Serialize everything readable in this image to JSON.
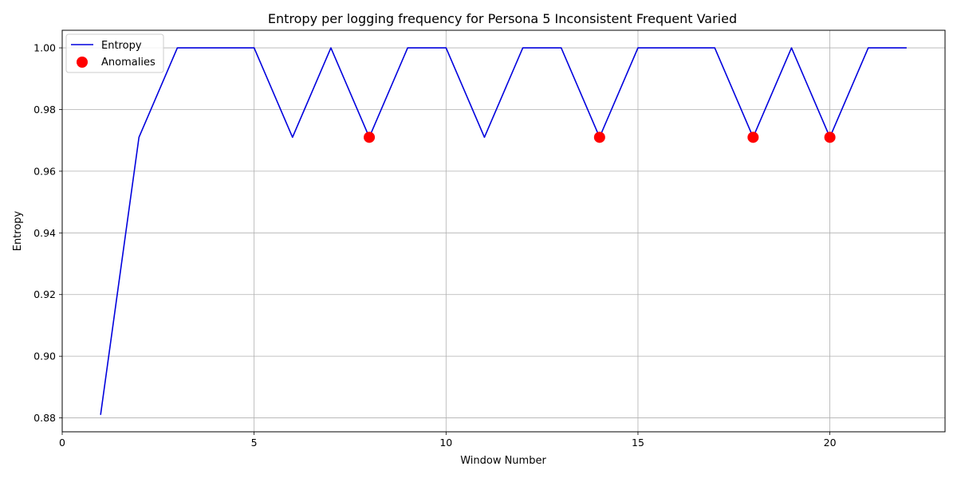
{
  "chart_data": {
    "type": "line",
    "title": "Entropy per logging frequency for Persona 5 Inconsistent Frequent Varied",
    "xlabel": "Window Number",
    "ylabel": "Entropy",
    "xlim": [
      0,
      23
    ],
    "ylim": [
      0.8755,
      1.0057
    ],
    "xticks": [
      0,
      5,
      10,
      15,
      20
    ],
    "yticks": [
      0.88,
      0.9,
      0.92,
      0.94,
      0.96,
      0.98,
      1.0
    ],
    "grid": true,
    "legend_position": "top-left",
    "series": [
      {
        "name": "Entropy",
        "kind": "line",
        "color": "#0000dd",
        "x": [
          1,
          2,
          3,
          4,
          5,
          6,
          7,
          8,
          9,
          10,
          11,
          12,
          13,
          14,
          15,
          16,
          17,
          18,
          19,
          20,
          21,
          22
        ],
        "y": [
          0.881,
          0.971,
          1.0,
          1.0,
          1.0,
          0.971,
          1.0,
          0.971,
          1.0,
          1.0,
          0.971,
          1.0,
          1.0,
          0.971,
          1.0,
          1.0,
          1.0,
          0.971,
          1.0,
          0.971,
          1.0,
          1.0
        ]
      },
      {
        "name": "Anomalies",
        "kind": "scatter",
        "color": "#ff0000",
        "x": [
          8,
          14,
          18,
          20
        ],
        "y": [
          0.971,
          0.971,
          0.971,
          0.971
        ]
      }
    ]
  }
}
